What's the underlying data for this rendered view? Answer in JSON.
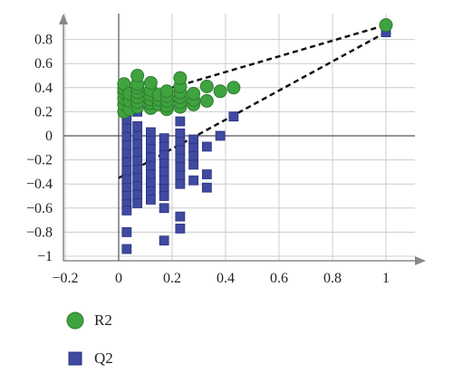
{
  "chart_data": {
    "type": "scatter",
    "title": "",
    "xlabel": "",
    "ylabel": "",
    "xlim": [
      -0.25,
      1.15
    ],
    "ylim": [
      -1.05,
      1.0
    ],
    "grid": true,
    "legend_position": "bottom-left",
    "x_ticks": [
      -0.2,
      0,
      0.2,
      0.4,
      0.6,
      0.8,
      1
    ],
    "x_tick_labels": [
      "−0.2",
      "0",
      "0.2",
      "0.4",
      "0.6",
      "0.8",
      "1"
    ],
    "y_ticks": [
      0.8,
      0.6,
      0.4,
      0.2,
      0,
      -0.2,
      -0.4,
      -0.6,
      -0.8,
      -1
    ],
    "y_tick_labels": [
      "0.8",
      "0.6",
      "0.4",
      "0.2",
      "0",
      "−0.2",
      "−0.4",
      "−0.6",
      "−0.8",
      "−1"
    ],
    "colors": {
      "r2": "#3fa33f",
      "q2": "#3f4aa0",
      "axis": "#888888",
      "grid": "#cccccc"
    },
    "series": [
      {
        "name": "R2",
        "marker": "circle",
        "points": [
          [
            1.0,
            0.92
          ],
          [
            0.02,
            0.2
          ],
          [
            0.02,
            0.26
          ],
          [
            0.02,
            0.31
          ],
          [
            0.02,
            0.36
          ],
          [
            0.02,
            0.39
          ],
          [
            0.02,
            0.43
          ],
          [
            0.04,
            0.22
          ],
          [
            0.04,
            0.29
          ],
          [
            0.04,
            0.35
          ],
          [
            0.07,
            0.24
          ],
          [
            0.07,
            0.28
          ],
          [
            0.07,
            0.32
          ],
          [
            0.07,
            0.36
          ],
          [
            0.07,
            0.4
          ],
          [
            0.07,
            0.43
          ],
          [
            0.07,
            0.5
          ],
          [
            0.12,
            0.23
          ],
          [
            0.12,
            0.27
          ],
          [
            0.12,
            0.3
          ],
          [
            0.12,
            0.34
          ],
          [
            0.12,
            0.38
          ],
          [
            0.12,
            0.44
          ],
          [
            0.15,
            0.26
          ],
          [
            0.15,
            0.3
          ],
          [
            0.15,
            0.34
          ],
          [
            0.18,
            0.22
          ],
          [
            0.18,
            0.25
          ],
          [
            0.18,
            0.29
          ],
          [
            0.18,
            0.33
          ],
          [
            0.18,
            0.37
          ],
          [
            0.23,
            0.24
          ],
          [
            0.23,
            0.28
          ],
          [
            0.23,
            0.32
          ],
          [
            0.23,
            0.36
          ],
          [
            0.23,
            0.41
          ],
          [
            0.23,
            0.48
          ],
          [
            0.28,
            0.26
          ],
          [
            0.28,
            0.3
          ],
          [
            0.28,
            0.35
          ],
          [
            0.33,
            0.29
          ],
          [
            0.33,
            0.41
          ],
          [
            0.38,
            0.37
          ],
          [
            0.43,
            0.4
          ]
        ]
      },
      {
        "name": "Q2",
        "marker": "square",
        "points": [
          [
            1.0,
            0.86
          ],
          [
            0.03,
            0.13
          ],
          [
            0.03,
            0.06
          ],
          [
            0.03,
            -0.01
          ],
          [
            0.03,
            -0.08
          ],
          [
            0.03,
            -0.15
          ],
          [
            0.03,
            -0.22
          ],
          [
            0.03,
            -0.29
          ],
          [
            0.03,
            -0.36
          ],
          [
            0.03,
            -0.43
          ],
          [
            0.03,
            -0.5
          ],
          [
            0.03,
            -0.57
          ],
          [
            0.03,
            -0.62
          ],
          [
            0.03,
            -0.8
          ],
          [
            0.03,
            -0.94
          ],
          [
            0.07,
            0.2
          ],
          [
            0.07,
            0.08
          ],
          [
            0.07,
            0.0
          ],
          [
            0.07,
            -0.07
          ],
          [
            0.07,
            -0.14
          ],
          [
            0.07,
            -0.21
          ],
          [
            0.07,
            -0.28
          ],
          [
            0.07,
            -0.35
          ],
          [
            0.07,
            -0.42
          ],
          [
            0.07,
            -0.49
          ],
          [
            0.07,
            -0.56
          ],
          [
            0.12,
            0.03
          ],
          [
            0.12,
            -0.04
          ],
          [
            0.12,
            -0.11
          ],
          [
            0.12,
            -0.18
          ],
          [
            0.12,
            -0.25
          ],
          [
            0.12,
            -0.32
          ],
          [
            0.12,
            -0.39
          ],
          [
            0.12,
            -0.46
          ],
          [
            0.12,
            -0.53
          ],
          [
            0.17,
            -0.02
          ],
          [
            0.17,
            -0.09
          ],
          [
            0.17,
            -0.16
          ],
          [
            0.17,
            -0.23
          ],
          [
            0.17,
            -0.3
          ],
          [
            0.17,
            -0.37
          ],
          [
            0.17,
            -0.44
          ],
          [
            0.17,
            -0.5
          ],
          [
            0.17,
            -0.6
          ],
          [
            0.17,
            -0.87
          ],
          [
            0.23,
            0.12
          ],
          [
            0.23,
            0.02
          ],
          [
            0.23,
            -0.05
          ],
          [
            0.23,
            -0.12
          ],
          [
            0.23,
            -0.19
          ],
          [
            0.23,
            -0.26
          ],
          [
            0.23,
            -0.33
          ],
          [
            0.23,
            -0.4
          ],
          [
            0.23,
            -0.67
          ],
          [
            0.23,
            -0.77
          ],
          [
            0.28,
            -0.03
          ],
          [
            0.28,
            -0.1
          ],
          [
            0.28,
            -0.17
          ],
          [
            0.28,
            -0.24
          ],
          [
            0.28,
            -0.37
          ],
          [
            0.33,
            -0.09
          ],
          [
            0.33,
            -0.32
          ],
          [
            0.33,
            -0.43
          ],
          [
            0.38,
            0.0
          ],
          [
            0.43,
            0.16
          ]
        ]
      }
    ],
    "regression_lines": [
      {
        "series": "R2",
        "from": [
          0.0,
          0.27
        ],
        "to": [
          1.0,
          0.92
        ]
      },
      {
        "series": "Q2",
        "from": [
          0.0,
          -0.35
        ],
        "to": [
          1.0,
          0.86
        ]
      }
    ]
  },
  "legend": {
    "r2_label": "R2",
    "q2_label": "Q2"
  }
}
